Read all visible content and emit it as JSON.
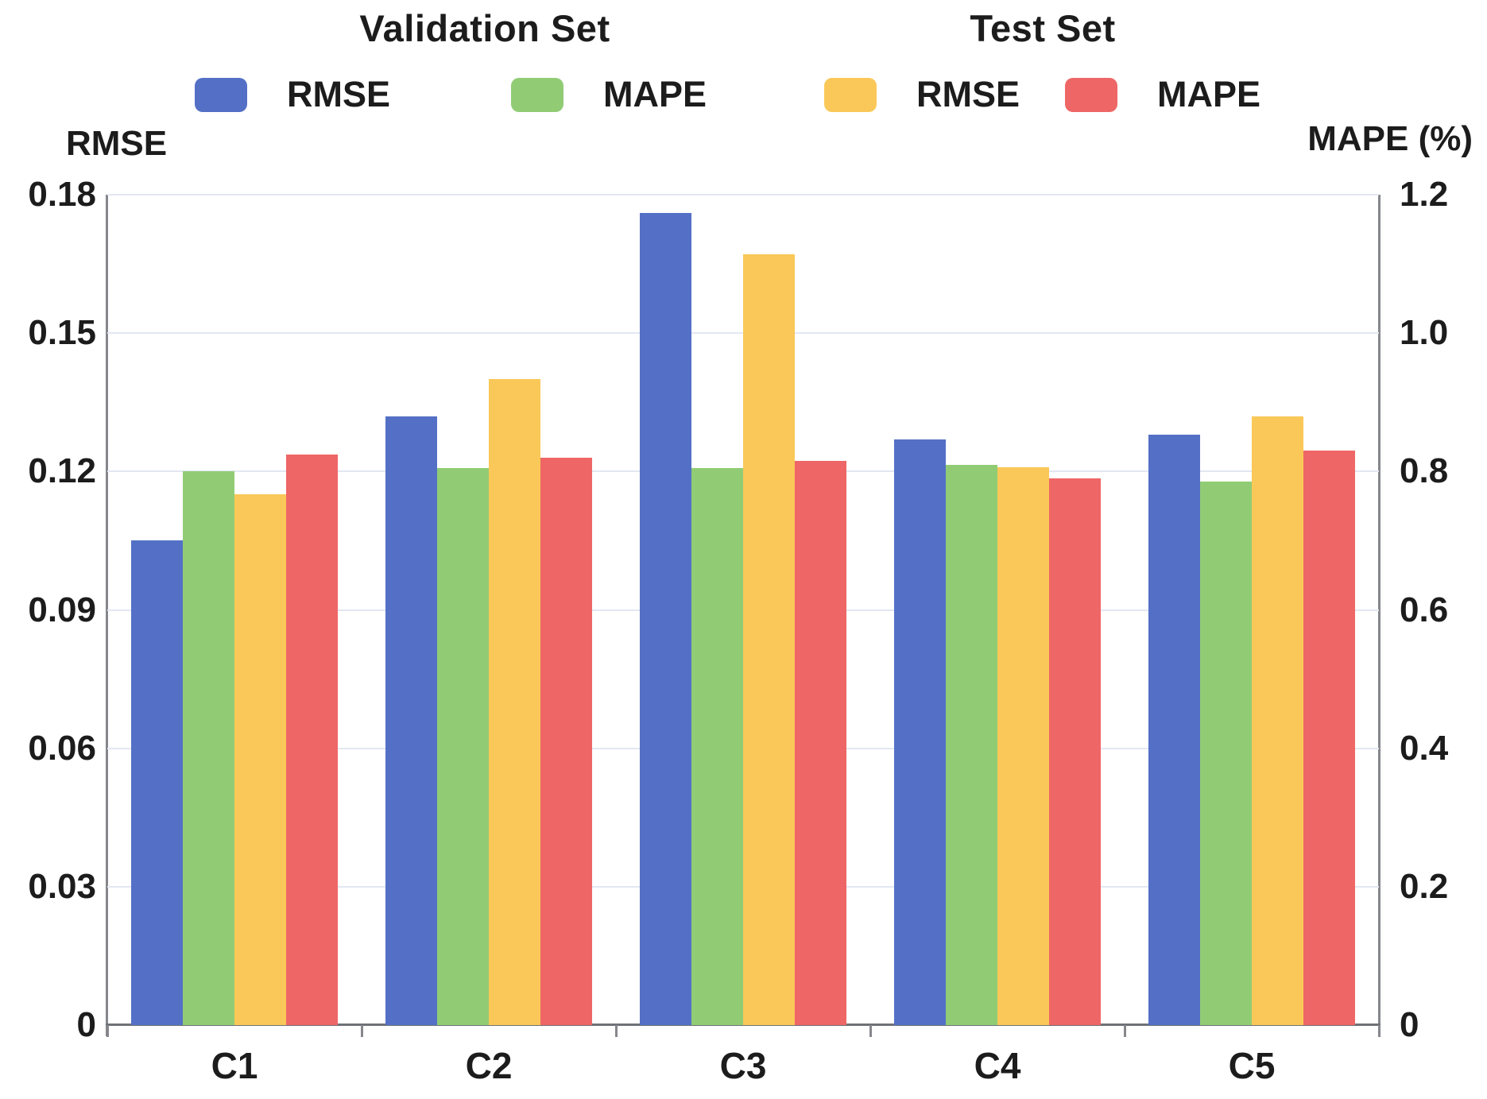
{
  "titles": {
    "validation_set": "Validation Set",
    "test_set": "Test Set"
  },
  "chart_data": {
    "type": "bar",
    "categories": [
      "C1",
      "C2",
      "C3",
      "C4",
      "C5"
    ],
    "series": [
      {
        "name": "RMSE",
        "group": "Validation Set",
        "axis": "left",
        "color": "#5470C6",
        "values": [
          0.105,
          0.132,
          0.176,
          0.127,
          0.128
        ]
      },
      {
        "name": "MAPE",
        "group": "Validation Set",
        "axis": "right",
        "color": "#91CC75",
        "values": [
          0.8,
          0.805,
          0.805,
          0.81,
          0.785
        ]
      },
      {
        "name": "RMSE",
        "group": "Test Set",
        "axis": "left",
        "color": "#FAC858",
        "values": [
          0.115,
          0.14,
          0.167,
          0.121,
          0.132
        ]
      },
      {
        "name": "MAPE",
        "group": "Test Set",
        "axis": "right",
        "color": "#EE6666",
        "values": [
          0.825,
          0.82,
          0.815,
          0.79,
          0.83
        ]
      }
    ],
    "left_axis": {
      "title": "RMSE",
      "min": 0,
      "max": 0.18,
      "ticks": [
        "0.18",
        "0.15",
        "0.12",
        "0.09",
        "0.06",
        "0.03",
        "0"
      ]
    },
    "right_axis": {
      "title": "MAPE (%)",
      "min": 0,
      "max": 1.2,
      "ticks": [
        "1.2",
        "1.0",
        "0.8",
        "0.6",
        "0.4",
        "0.2",
        "0"
      ]
    },
    "grid": true,
    "legend_position": "top",
    "colors": {
      "validation_rmse": "#5470C6",
      "validation_mape": "#91CC75",
      "test_rmse": "#FAC858",
      "test_mape": "#EE6666",
      "gridline": "#E2E7F2",
      "axis_line": "#6E7277",
      "text": "#1C1C1C"
    }
  }
}
